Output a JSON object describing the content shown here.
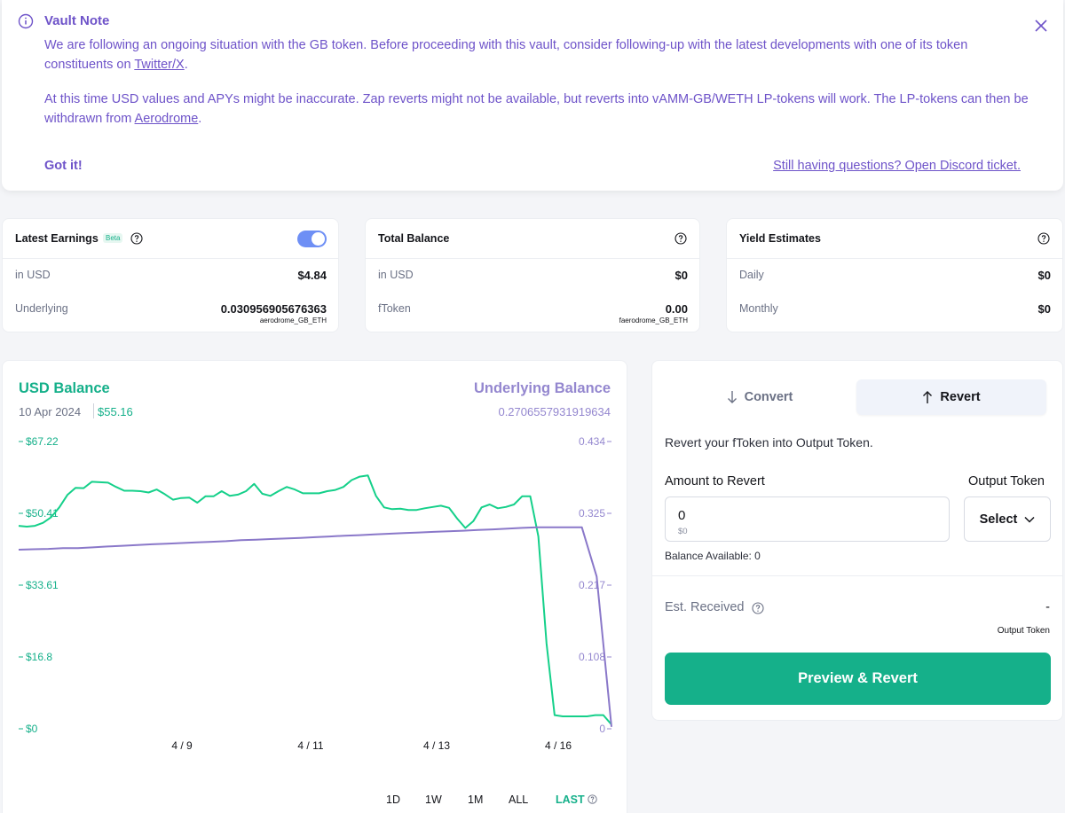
{
  "vault_note": {
    "title": "Vault Note",
    "p1_text": "We are following an ongoing situation with the GB token. Before proceeding with this vault, consider following-up with the latest developments with one of its token constituents on ",
    "p1_link": "Twitter/X",
    "p1_end": ".",
    "p2_text": "At this time USD values and APYs might be inaccurate. Zap reverts might not be available, but reverts into vAMM-GB/WETH LP-tokens will work. The LP-tokens can then be withdrawn from ",
    "p2_link": "Aerodrome",
    "p2_end": ".",
    "got_it": "Got it!",
    "discord": "Still having questions? Open Discord ticket.",
    "accent_color": "#6e53c9"
  },
  "latest_earnings": {
    "title": "Latest Earnings",
    "badge": "Beta",
    "toggle_on": true,
    "usd_label": "in USD",
    "usd_value": "$4.84",
    "underlying_label": "Underlying",
    "underlying_value": "0.030956905676363",
    "underlying_token": "aerodrome_GB_ETH"
  },
  "total_balance": {
    "title": "Total Balance",
    "usd_label": "in USD",
    "usd_value": "$0",
    "ftoken_label": "fToken",
    "ftoken_value": "0.00",
    "ftoken_token": "faerodrome_GB_ETH"
  },
  "yield_estimates": {
    "title": "Yield Estimates",
    "daily_label": "Daily",
    "daily_value": "$0",
    "monthly_label": "Monthly",
    "monthly_value": "$0"
  },
  "chart": {
    "usd_title": "USD Balance",
    "usd_date": "10 Apr 2024",
    "usd_value": "$55.16",
    "underlying_title": "Underlying Balance",
    "underlying_value": "0.2706557931919634",
    "ranges": [
      "1D",
      "1W",
      "1M",
      "ALL",
      "LAST"
    ],
    "active_range": "LAST"
  },
  "chart_data": {
    "type": "line",
    "x_ticks": [
      "4 / 9",
      "4 / 11",
      "4 / 13",
      "4 / 16"
    ],
    "y_left_ticks": [
      "$67.22",
      "$50.41",
      "$33.61",
      "$16.8",
      "$0"
    ],
    "y_right_ticks": [
      "0.434",
      "0.325",
      "0.217",
      "0.108",
      "0"
    ],
    "y_left_range": [
      0,
      67.22
    ],
    "y_right_range": [
      0,
      0.434
    ],
    "series": [
      {
        "name": "USD Balance",
        "axis": "left",
        "color": "#15d08a",
        "values": [
          47.5,
          47.3,
          47.5,
          48.2,
          49.5,
          51.8,
          54.7,
          56.4,
          56.3,
          57.8,
          57.7,
          57.6,
          56.6,
          55.7,
          55.7,
          55.6,
          55.3,
          56.0,
          54.9,
          53.6,
          54.0,
          54.1,
          52.9,
          54.4,
          54.4,
          55.6,
          54.5,
          54.8,
          55.6,
          57.3,
          55.0,
          54.5,
          55.6,
          56.6,
          56.0,
          55.1,
          55.1,
          55.1,
          55.6,
          55.9,
          56.6,
          58.2,
          59.0,
          59.3,
          54.5,
          51.8,
          51.4,
          51.5,
          51.2,
          51.2,
          51.6,
          51.9,
          52.2,
          51.7,
          49.2,
          47.0,
          48.6,
          51.8,
          52.5,
          51.6,
          51.9,
          52.5,
          54.4,
          54.4,
          45.0,
          20.0,
          3.2,
          2.9,
          2.9,
          2.9,
          2.9,
          3.2,
          3.2,
          1.0
        ]
      },
      {
        "name": "Underlying Balance",
        "axis": "right",
        "color": "#8a78c9",
        "values": [
          0.2706,
          0.2713,
          0.2718,
          0.2728,
          0.273,
          0.2741,
          0.2754,
          0.2765,
          0.2777,
          0.2788,
          0.2796,
          0.2806,
          0.2815,
          0.2825,
          0.2835,
          0.2849,
          0.2856,
          0.2867,
          0.2875,
          0.2883,
          0.2895,
          0.2905,
          0.2917,
          0.2926,
          0.2938,
          0.2947,
          0.2957,
          0.2966,
          0.2975,
          0.2985,
          0.2992,
          0.3005,
          0.3012,
          0.3023,
          0.3035,
          0.3044,
          0.3045,
          0.3045,
          0.3045,
          0.23,
          0.003
        ]
      }
    ]
  },
  "revert_panel": {
    "tab_convert": "Convert",
    "tab_revert": "Revert",
    "description": "Revert your fToken into Output Token.",
    "amount_label": "Amount to Revert",
    "output_label": "Output Token",
    "amount_value": "0",
    "amount_usd": "$0",
    "select_label": "Select",
    "balance_available": "Balance Available:  0",
    "est_label": "Est. Received",
    "est_value": "-",
    "est_sub": "Output Token",
    "cta": "Preview & Revert",
    "cta_color": "#15b08a"
  }
}
